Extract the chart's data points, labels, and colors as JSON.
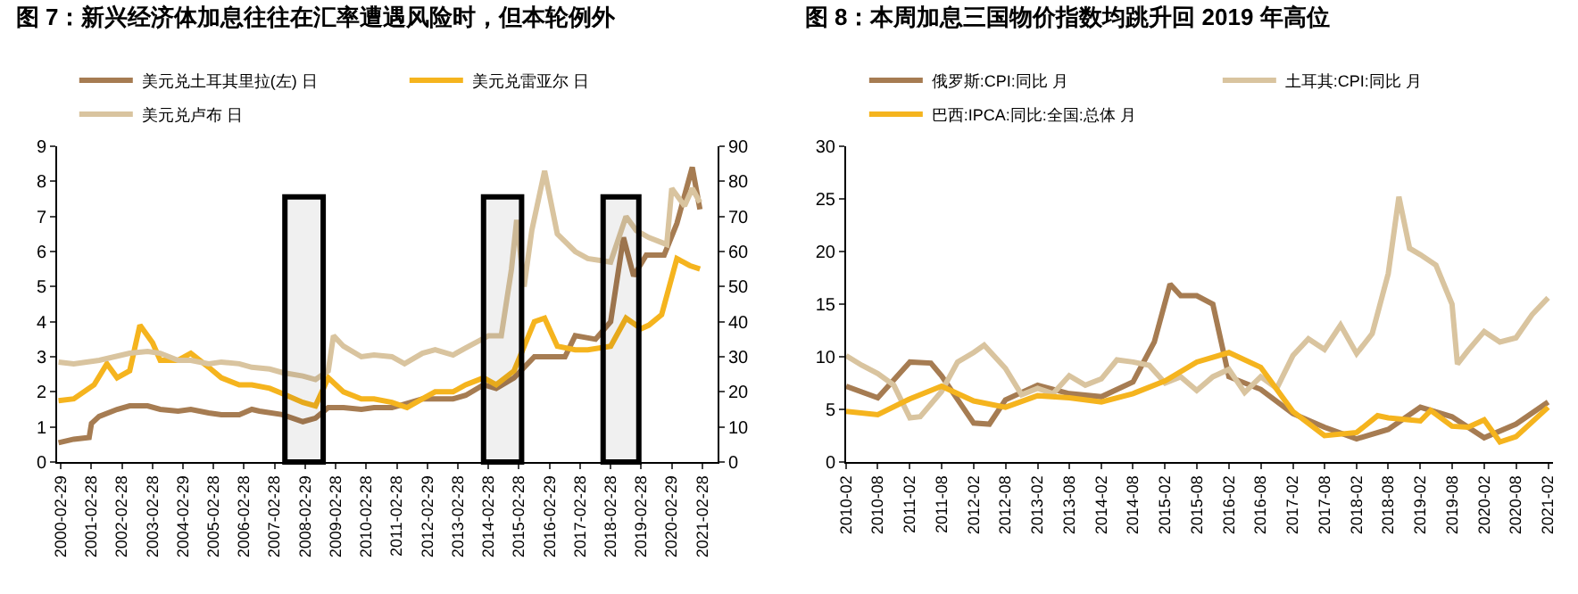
{
  "chart_data": [
    {
      "type": "line",
      "title": "图 7：新兴经济体加息往往在汇率遭遇风险时，但本轮例外",
      "legend": "top",
      "grid": false,
      "marker": "none",
      "line_style": "solid",
      "xlim": [
        "2000-01-15",
        "2021-08-31"
      ],
      "xticks": [
        {
          "value": "2000-02-29",
          "label": "2000-02-29"
        },
        {
          "value": "2001-02-28",
          "label": "2001-02-28"
        },
        {
          "value": "2002-02-28",
          "label": "2002-02-28"
        },
        {
          "value": "2003-02-28",
          "label": "2003-02-28"
        },
        {
          "value": "2004-02-29",
          "label": "2004-02-29"
        },
        {
          "value": "2005-02-28",
          "label": "2005-02-28"
        },
        {
          "value": "2006-02-28",
          "label": "2006-02-28"
        },
        {
          "value": "2007-02-28",
          "label": "2007-02-28"
        },
        {
          "value": "2008-02-29",
          "label": "2008-02-29"
        },
        {
          "value": "2009-02-28",
          "label": "2009-02-28"
        },
        {
          "value": "2010-02-28",
          "label": "2010-02-28"
        },
        {
          "value": "2011-02-28",
          "label": "2011-02-28"
        },
        {
          "value": "2012-02-29",
          "label": "2012-02-29"
        },
        {
          "value": "2013-02-28",
          "label": "2013-02-28"
        },
        {
          "value": "2014-02-28",
          "label": "2014-02-28"
        },
        {
          "value": "2015-02-28",
          "label": "2015-02-28"
        },
        {
          "value": "2016-02-29",
          "label": "2016-02-29"
        },
        {
          "value": "2017-02-28",
          "label": "2017-02-28"
        },
        {
          "value": "2018-02-28",
          "label": "2018-02-28"
        },
        {
          "value": "2019-02-28",
          "label": "2019-02-28"
        },
        {
          "value": "2020-02-29",
          "label": "2020-02-29"
        },
        {
          "value": "2021-02-28",
          "label": "2021-02-28"
        }
      ],
      "ylim": [
        0,
        9
      ],
      "yticks": [
        0,
        1,
        2,
        3,
        4,
        5,
        6,
        7,
        8,
        9
      ],
      "y2lim": [
        0,
        90
      ],
      "y2ticks": [
        0,
        10,
        20,
        30,
        40,
        50,
        60,
        70,
        80,
        90
      ],
      "bands": [
        {
          "axis": "x",
          "from": "2007-07",
          "to": "2008-10",
          "color": "#000000"
        },
        {
          "axis": "x",
          "from": "2014-01",
          "to": "2015-04",
          "color": "#000000"
        },
        {
          "axis": "x",
          "from": "2017-12",
          "to": "2019-02",
          "color": "#000000"
        }
      ],
      "series": [
        {
          "name": "美元兑土耳其里拉(左) 日",
          "color": "#a67c52",
          "x": [
            "2000-02",
            "2000-08",
            "2001-02",
            "2001-03",
            "2001-06",
            "2002-01",
            "2002-06",
            "2003-01",
            "2003-06",
            "2004-01",
            "2004-06",
            "2005-01",
            "2005-06",
            "2006-01",
            "2006-06",
            "2006-09",
            "2007-06",
            "2008-02",
            "2008-07",
            "2008-12",
            "2009-06",
            "2010-01",
            "2010-06",
            "2011-01",
            "2011-06",
            "2012-01",
            "2012-06",
            "2013-01",
            "2013-06",
            "2014-01",
            "2014-06",
            "2015-01",
            "2015-09",
            "2016-01",
            "2016-09",
            "2017-01",
            "2017-09",
            "2018-03",
            "2018-08",
            "2018-12",
            "2019-05",
            "2019-12",
            "2020-05",
            "2020-11",
            "2021-02"
          ],
          "values": [
            0.55,
            0.65,
            0.7,
            1.1,
            1.3,
            1.5,
            1.6,
            1.6,
            1.5,
            1.45,
            1.5,
            1.4,
            1.35,
            1.35,
            1.5,
            1.45,
            1.35,
            1.15,
            1.25,
            1.55,
            1.55,
            1.5,
            1.55,
            1.55,
            1.65,
            1.8,
            1.8,
            1.8,
            1.9,
            2.2,
            2.1,
            2.4,
            3.0,
            3.0,
            3.0,
            3.6,
            3.5,
            4.0,
            6.4,
            5.3,
            5.9,
            5.9,
            6.8,
            8.4,
            7.2
          ]
        },
        {
          "name": "美元兑雷亚尔 日",
          "color": "#f5b41e",
          "x": [
            "2000-02",
            "2000-08",
            "2001-04",
            "2001-09",
            "2002-01",
            "2002-06",
            "2002-10",
            "2003-03",
            "2003-06",
            "2004-01",
            "2004-06",
            "2005-01",
            "2005-06",
            "2006-01",
            "2006-06",
            "2007-01",
            "2007-06",
            "2008-02",
            "2008-07",
            "2008-12",
            "2009-06",
            "2010-01",
            "2010-06",
            "2011-01",
            "2011-07",
            "2012-01",
            "2012-06",
            "2013-01",
            "2013-06",
            "2014-01",
            "2014-06",
            "2015-01",
            "2015-09",
            "2016-01",
            "2016-06",
            "2017-01",
            "2017-06",
            "2018-03",
            "2018-09",
            "2019-03",
            "2019-06",
            "2019-11",
            "2020-05",
            "2020-10",
            "2021-02"
          ],
          "values": [
            1.75,
            1.8,
            2.2,
            2.8,
            2.4,
            2.6,
            3.9,
            3.4,
            2.9,
            2.9,
            3.1,
            2.7,
            2.4,
            2.2,
            2.2,
            2.1,
            1.95,
            1.7,
            1.6,
            2.4,
            2.0,
            1.8,
            1.8,
            1.7,
            1.55,
            1.8,
            2.0,
            2.0,
            2.2,
            2.4,
            2.2,
            2.6,
            4.0,
            4.1,
            3.3,
            3.2,
            3.2,
            3.3,
            4.1,
            3.8,
            3.9,
            4.2,
            5.8,
            5.6,
            5.5
          ]
        },
        {
          "name": "美元兑卢布 日",
          "color": "#d9c49f",
          "axis": "y2",
          "x": [
            "2000-02",
            "2000-08",
            "2001-06",
            "2002-06",
            "2003-01",
            "2003-06",
            "2004-01",
            "2004-06",
            "2005-01",
            "2005-06",
            "2006-01",
            "2006-06",
            "2007-01",
            "2007-06",
            "2008-02",
            "2008-07",
            "2008-12",
            "2009-02",
            "2009-06",
            "2010-01",
            "2010-06",
            "2011-01",
            "2011-06",
            "2012-01",
            "2012-06",
            "2013-01",
            "2013-06",
            "2014-03",
            "2014-08",
            "2014-12",
            "2015-02",
            "2015-05",
            "2015-08",
            "2016-01",
            "2016-06",
            "2017-01",
            "2017-06",
            "2018-03",
            "2018-09",
            "2019-01",
            "2019-06",
            "2020-01",
            "2020-03",
            "2020-08",
            "2020-11",
            "2021-02"
          ],
          "values": [
            28.5,
            28,
            29,
            31,
            31.5,
            31,
            29,
            29,
            28,
            28.5,
            28,
            27,
            26.5,
            25.5,
            24.5,
            23.5,
            26,
            36,
            33,
            30,
            30.5,
            30,
            28,
            31,
            32,
            30.5,
            32.5,
            36,
            36,
            55,
            69,
            50,
            66,
            83,
            65,
            60,
            58,
            57,
            70,
            66,
            64,
            62,
            78,
            73,
            78,
            74
          ]
        }
      ]
    },
    {
      "type": "line",
      "title": "图 8：本周加息三国物价指数均跳升回 2019 年高位",
      "legend": "top",
      "grid": false,
      "marker": "none",
      "line_style": "solid",
      "xlim": [
        "2010-02",
        "2021-03"
      ],
      "xticks": [
        {
          "value": "2010-02",
          "label": "2010-02"
        },
        {
          "value": "2010-08",
          "label": "2010-08"
        },
        {
          "value": "2011-02",
          "label": "2011-02"
        },
        {
          "value": "2011-08",
          "label": "2011-08"
        },
        {
          "value": "2012-02",
          "label": "2012-02"
        },
        {
          "value": "2012-08",
          "label": "2012-08"
        },
        {
          "value": "2013-02",
          "label": "2013-02"
        },
        {
          "value": "2013-08",
          "label": "2013-08"
        },
        {
          "value": "2014-02",
          "label": "2014-02"
        },
        {
          "value": "2014-08",
          "label": "2014-08"
        },
        {
          "value": "2015-02",
          "label": "2015-02"
        },
        {
          "value": "2015-08",
          "label": "2015-08"
        },
        {
          "value": "2016-02",
          "label": "2016-02"
        },
        {
          "value": "2016-08",
          "label": "2016-08"
        },
        {
          "value": "2017-02",
          "label": "2017-02"
        },
        {
          "value": "2017-08",
          "label": "2017-08"
        },
        {
          "value": "2018-02",
          "label": "2018-02"
        },
        {
          "value": "2018-08",
          "label": "2018-08"
        },
        {
          "value": "2019-02",
          "label": "2019-02"
        },
        {
          "value": "2019-08",
          "label": "2019-08"
        },
        {
          "value": "2020-02",
          "label": "2020-02"
        },
        {
          "value": "2020-08",
          "label": "2020-08"
        },
        {
          "value": "2021-02",
          "label": "2021-02"
        }
      ],
      "ylim": [
        0,
        30
      ],
      "yticks": [
        0,
        5,
        10,
        15,
        20,
        25,
        30
      ],
      "series": [
        {
          "name": "俄罗斯:CPI:同比 月",
          "color": "#a67c52",
          "x": [
            "2010-02",
            "2010-08",
            "2011-02",
            "2011-06",
            "2011-08",
            "2012-02",
            "2012-05",
            "2012-08",
            "2013-02",
            "2013-08",
            "2014-02",
            "2014-08",
            "2014-12",
            "2015-03",
            "2015-05",
            "2015-08",
            "2015-11",
            "2016-02",
            "2016-08",
            "2017-02",
            "2017-08",
            "2018-02",
            "2018-08",
            "2019-02",
            "2019-08",
            "2020-02",
            "2020-08",
            "2021-02"
          ],
          "values": [
            7.2,
            6.1,
            9.5,
            9.4,
            8.2,
            3.7,
            3.6,
            5.9,
            7.3,
            6.5,
            6.2,
            7.6,
            11.4,
            16.9,
            15.8,
            15.8,
            15.0,
            8.1,
            6.9,
            4.6,
            3.3,
            2.2,
            3.1,
            5.2,
            4.3,
            2.3,
            3.6,
            5.7
          ]
        },
        {
          "name": "土耳其:CPI:同比 月",
          "color": "#d9c49f",
          "x": [
            "2010-02",
            "2010-05",
            "2010-08",
            "2010-11",
            "2011-02",
            "2011-04",
            "2011-08",
            "2011-11",
            "2012-02",
            "2012-04",
            "2012-08",
            "2012-11",
            "2013-02",
            "2013-05",
            "2013-08",
            "2013-11",
            "2014-02",
            "2014-05",
            "2014-08",
            "2014-11",
            "2015-02",
            "2015-05",
            "2015-08",
            "2015-11",
            "2016-02",
            "2016-05",
            "2016-08",
            "2016-11",
            "2017-02",
            "2017-05",
            "2017-08",
            "2017-11",
            "2018-02",
            "2018-05",
            "2018-08",
            "2018-10",
            "2018-12",
            "2019-02",
            "2019-05",
            "2019-08",
            "2019-09",
            "2019-11",
            "2020-02",
            "2020-05",
            "2020-08",
            "2020-11",
            "2021-02"
          ],
          "values": [
            10.1,
            9.2,
            8.4,
            7.3,
            4.2,
            4.3,
            6.7,
            9.5,
            10.4,
            11.1,
            8.9,
            6.4,
            7.0,
            6.5,
            8.2,
            7.3,
            7.9,
            9.7,
            9.5,
            9.2,
            7.5,
            8.1,
            6.8,
            8.1,
            8.8,
            6.6,
            8.1,
            7.0,
            10.1,
            11.7,
            10.7,
            13.0,
            10.3,
            12.2,
            17.9,
            25.2,
            20.3,
            19.7,
            18.7,
            15.0,
            9.3,
            10.6,
            12.4,
            11.4,
            11.8,
            14.0,
            15.6
          ]
        },
        {
          "name": "巴西:IPCA:同比:全国:总体 月",
          "color": "#f5b41e",
          "x": [
            "2010-02",
            "2010-08",
            "2011-02",
            "2011-08",
            "2012-02",
            "2012-08",
            "2013-02",
            "2013-08",
            "2014-02",
            "2014-08",
            "2015-02",
            "2015-08",
            "2016-02",
            "2016-08",
            "2017-02",
            "2017-08",
            "2018-02",
            "2018-06",
            "2018-08",
            "2019-02",
            "2019-04",
            "2019-08",
            "2019-11",
            "2020-02",
            "2020-05",
            "2020-08",
            "2021-02"
          ],
          "values": [
            4.8,
            4.5,
            6.0,
            7.2,
            5.8,
            5.2,
            6.3,
            6.1,
            5.7,
            6.5,
            7.7,
            9.5,
            10.4,
            9.0,
            4.8,
            2.5,
            2.8,
            4.4,
            4.2,
            3.9,
            4.9,
            3.4,
            3.3,
            4.0,
            1.9,
            2.4,
            5.2
          ]
        }
      ]
    }
  ]
}
